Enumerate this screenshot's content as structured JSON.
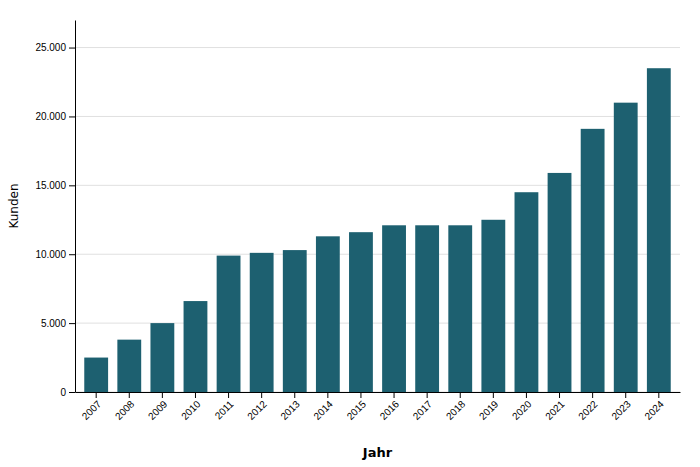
{
  "chart_data": {
    "type": "bar",
    "xlabel": "Jahr",
    "ylabel": "Kunden",
    "categories": [
      "2007",
      "2008",
      "2009",
      "2010",
      "2011",
      "2012",
      "2013",
      "2014",
      "2015",
      "2016",
      "2017",
      "2018",
      "2019",
      "2020",
      "2021",
      "2022",
      "2023",
      "2024"
    ],
    "values": [
      2500,
      3800,
      5000,
      6600,
      9900,
      10100,
      10300,
      11300,
      11600,
      12100,
      12100,
      12100,
      12500,
      14500,
      15900,
      19100,
      21000,
      23500
    ],
    "color": "#1d6070",
    "ylim": [
      0,
      27000
    ],
    "yticks": [
      0,
      {
        "value": 5000,
        "label": "5.000"
      },
      {
        "value": 10000,
        "label": "10.000"
      },
      {
        "value": 15000,
        "label": "15.000"
      },
      {
        "value": 20000,
        "label": "20.000"
      },
      {
        "value": 25000,
        "label": "25.000"
      }
    ],
    "grid": true
  }
}
